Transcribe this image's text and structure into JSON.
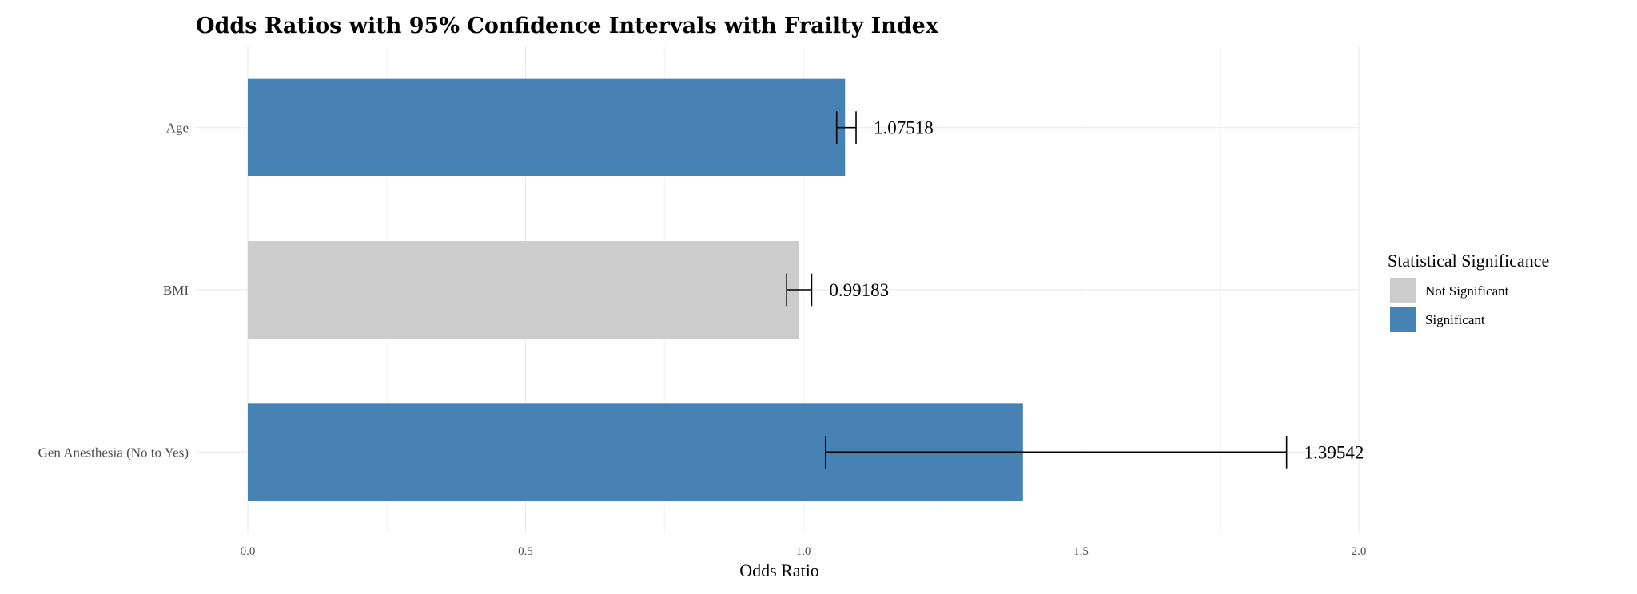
{
  "chart_data": {
    "type": "bar",
    "orientation": "horizontal",
    "title": "Odds Ratios with 95% Confidence Intervals with Frailty Index",
    "xlabel": "Odds Ratio",
    "ylabel": "",
    "xlim": [
      0,
      2
    ],
    "x_ticks": [
      "0.0",
      "0.5",
      "1.0",
      "1.5",
      "2.0"
    ],
    "grid": true,
    "categories": [
      "Age",
      "BMI",
      "Gen Anesthesia (No to Yes)"
    ],
    "values": [
      1.07518,
      0.99183,
      1.39542
    ],
    "value_labels": [
      "1.07518",
      "0.99183",
      "1.39542"
    ],
    "ci_lower": [
      1.06,
      0.97,
      1.04
    ],
    "ci_upper": [
      1.095,
      1.015,
      1.87
    ],
    "significance": [
      "Significant",
      "Not Significant",
      "Significant"
    ],
    "legend": {
      "title": "Statistical Significance",
      "position": "right",
      "entries": [
        {
          "label": "Not Significant",
          "color": "#cccccc"
        },
        {
          "label": "Significant",
          "color": "#4682b4"
        }
      ]
    },
    "colors": {
      "Significant": "#4682b4",
      "Not Significant": "#cccccc"
    }
  }
}
